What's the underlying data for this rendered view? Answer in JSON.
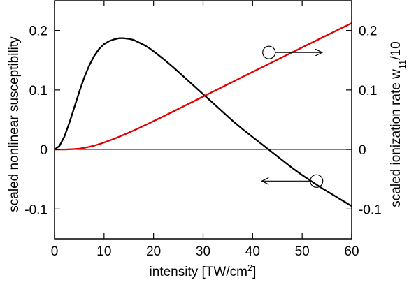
{
  "chart_data": {
    "type": "line",
    "title": "",
    "xlabel": {
      "text": "intensity [TW/cm",
      "sup": "2",
      "end": "]"
    },
    "ylabel_left": "scaled nonlinear susceptibility",
    "ylabel_right": {
      "text": "scaled ionization rate w",
      "sub": "11",
      "end": "/10"
    },
    "xlim": [
      0,
      60
    ],
    "ylim": [
      -0.15,
      0.25
    ],
    "x_ticks": [
      0,
      10,
      20,
      30,
      40,
      50,
      60
    ],
    "y_ticks": [
      -0.1,
      0,
      0.1,
      0.2
    ],
    "x_tick_labels": [
      "0",
      "10",
      "20",
      "30",
      "40",
      "50",
      "60"
    ],
    "y_tick_labels": [
      "-0.1",
      "0",
      "0.1",
      "0.2"
    ],
    "grid": false,
    "zero_line": true,
    "series": [
      {
        "axis": "left",
        "color": "#000000",
        "x": [
          0,
          1,
          2,
          3,
          4,
          5,
          6,
          7,
          8,
          9,
          10,
          11,
          12,
          13,
          14,
          15,
          16,
          17,
          18,
          19,
          20,
          22,
          24,
          26,
          28,
          30,
          32,
          34,
          36,
          38,
          40,
          42,
          44,
          46,
          48,
          50,
          52,
          54,
          56,
          58,
          60
        ],
        "y": [
          0,
          0.006,
          0.022,
          0.045,
          0.071,
          0.097,
          0.121,
          0.141,
          0.157,
          0.169,
          0.177,
          0.182,
          0.185,
          0.187,
          0.187,
          0.186,
          0.184,
          0.18,
          0.176,
          0.171,
          0.165,
          0.152,
          0.138,
          0.123,
          0.108,
          0.093,
          0.078,
          0.063,
          0.048,
          0.034,
          0.021,
          0.008,
          -0.005,
          -0.018,
          -0.031,
          -0.043,
          -0.054,
          -0.065,
          -0.075,
          -0.085,
          -0.095
        ]
      },
      {
        "axis": "right",
        "color": "#e00000",
        "x": [
          0,
          2,
          4,
          5,
          6,
          7,
          8,
          9,
          10,
          11,
          12,
          13,
          14,
          15,
          16,
          17,
          18,
          19,
          20,
          22,
          24,
          26,
          28,
          30,
          32,
          34,
          36,
          38,
          40,
          42,
          44,
          46,
          48,
          50,
          52,
          54,
          56,
          58,
          60
        ],
        "y": [
          0,
          0,
          0.0008,
          0.0015,
          0.0028,
          0.0045,
          0.0065,
          0.009,
          0.0118,
          0.0148,
          0.018,
          0.0213,
          0.0248,
          0.0284,
          0.0321,
          0.0359,
          0.0398,
          0.0437,
          0.0477,
          0.0558,
          0.064,
          0.0723,
          0.0806,
          0.0889,
          0.0972,
          0.1055,
          0.1138,
          0.1221,
          0.1304,
          0.1386,
          0.1468,
          0.1551,
          0.1633,
          0.1715,
          0.1797,
          0.1879,
          0.196,
          0.2042,
          0.2123
        ]
      }
    ],
    "annotations": [
      {
        "type": "circle-arrow",
        "circle_at": [
          43.3,
          0.163
        ],
        "arrow_to": [
          53.9,
          0.163
        ],
        "direction": "right"
      },
      {
        "type": "circle-arrow",
        "circle_at": [
          52.9,
          -0.053
        ],
        "arrow_to": [
          42.0,
          -0.053
        ],
        "direction": "left"
      }
    ]
  }
}
